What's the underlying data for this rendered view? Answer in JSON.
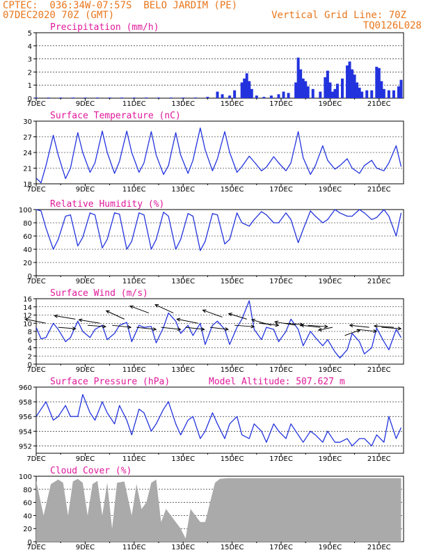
{
  "header": {
    "line1": "CPTEC:  036:34W-07:57S  BELO JARDIM (PE)",
    "line2": "07DEC2020 70Z (GMT)",
    "right1": "Vertical Grid Line: 70Z",
    "right2": "TQ0126L028"
  },
  "colors": {
    "header": "#e8761c",
    "title": "#e0189a",
    "line": "#2233dd",
    "cloud": "#aaaaaa"
  },
  "x_axis": {
    "start_day": 7,
    "end_day": 22,
    "tick_labels": [
      "7DEC",
      "9DEC",
      "11DEC",
      "13DEC",
      "15DEC",
      "17DEC",
      "19DEC",
      "21DEC"
    ],
    "tick_days": [
      7,
      9,
      11,
      13,
      15,
      17,
      19,
      21
    ]
  },
  "chart_data": [
    {
      "type": "bar",
      "title": "Precipitation (mm/h)",
      "ylim": [
        0,
        5
      ],
      "yticks": [
        0,
        1,
        2,
        3,
        4,
        5
      ],
      "x_unit": "day of December 2020",
      "x": [
        7.0,
        7.5,
        8.0,
        8.5,
        9.0,
        9.5,
        10.0,
        10.5,
        11.0,
        11.5,
        12.0,
        12.5,
        13.0,
        13.5,
        14.0,
        14.4,
        14.6,
        14.9,
        15.1,
        15.4,
        15.5,
        15.6,
        15.7,
        15.8,
        16.0,
        16.3,
        16.6,
        16.9,
        17.1,
        17.3,
        17.6,
        17.7,
        17.8,
        17.9,
        18.0,
        18.1,
        18.3,
        18.6,
        18.8,
        18.9,
        19.0,
        19.1,
        19.2,
        19.3,
        19.5,
        19.7,
        19.8,
        19.9,
        20.0,
        20.1,
        20.2,
        20.3,
        20.5,
        20.7,
        20.9,
        21.0,
        21.1,
        21.2,
        21.4,
        21.6,
        21.8,
        21.9
      ],
      "values": [
        0.05,
        0.05,
        0.05,
        0.05,
        0.05,
        0.05,
        0.05,
        0.05,
        0.05,
        0.05,
        0.05,
        0.05,
        0.05,
        0.05,
        0.1,
        0.5,
        0.3,
        0.2,
        0.6,
        1.2,
        1.5,
        1.9,
        1.3,
        0.7,
        0.2,
        0.1,
        0.2,
        0.3,
        0.5,
        0.4,
        1.2,
        3.1,
        2.2,
        1.5,
        1.3,
        0.9,
        0.7,
        0.5,
        1.6,
        2.1,
        1.2,
        0.5,
        0.7,
        1.1,
        1.5,
        2.5,
        2.8,
        2.2,
        1.8,
        1.2,
        0.8,
        0.5,
        0.6,
        0.6,
        2.4,
        2.3,
        1.3,
        0.7,
        0.6,
        0.6,
        0.9,
        1.4
      ]
    },
    {
      "type": "line",
      "title": "Surface Temperature (nC)",
      "ylim": [
        18,
        30
      ],
      "yticks": [
        18,
        21,
        24,
        27,
        30
      ],
      "x_unit": "day of December 2020",
      "x": [
        7.0,
        7.2,
        7.4,
        7.7,
        7.9,
        8.2,
        8.4,
        8.7,
        8.9,
        9.2,
        9.4,
        9.7,
        9.9,
        10.2,
        10.4,
        10.7,
        10.9,
        11.2,
        11.4,
        11.7,
        11.9,
        12.2,
        12.4,
        12.7,
        12.9,
        13.2,
        13.4,
        13.7,
        13.9,
        14.2,
        14.4,
        14.7,
        14.9,
        15.2,
        15.4,
        15.7,
        15.9,
        16.2,
        16.4,
        16.7,
        16.9,
        17.2,
        17.4,
        17.7,
        17.9,
        18.2,
        18.4,
        18.7,
        18.9,
        19.2,
        19.4,
        19.7,
        19.9,
        20.2,
        20.4,
        20.7,
        20.9,
        21.2,
        21.4,
        21.7,
        21.9
      ],
      "series": [
        {
          "values": [
            19.1,
            18.2,
            21.5,
            27.3,
            23.5,
            19.0,
            21.0,
            27.8,
            24.0,
            20.2,
            22.0,
            28.1,
            24.0,
            20.0,
            22.3,
            28.1,
            24.0,
            20.2,
            22.0,
            28.0,
            23.5,
            19.8,
            21.5,
            27.8,
            23.5,
            20.0,
            22.5,
            28.7,
            24.5,
            20.5,
            22.8,
            28.0,
            24.0,
            20.2,
            21.3,
            23.3,
            22.2,
            20.5,
            21.2,
            23.2,
            22.0,
            20.5,
            22.0,
            28.0,
            23.0,
            19.8,
            21.5,
            25.3,
            22.5,
            20.8,
            21.5,
            22.8,
            21.0,
            20.0,
            21.5,
            22.5,
            21.0,
            20.5,
            22.0,
            25.3,
            21.3
          ]
        }
      ]
    },
    {
      "type": "line",
      "title": "Relative Humidity (%)",
      "ylim": [
        0,
        100
      ],
      "yticks": [
        0,
        20,
        40,
        60,
        80,
        100
      ],
      "x_unit": "day of December 2020",
      "x": [
        7.0,
        7.2,
        7.4,
        7.7,
        7.9,
        8.2,
        8.4,
        8.7,
        8.9,
        9.2,
        9.4,
        9.7,
        9.9,
        10.2,
        10.4,
        10.7,
        10.9,
        11.2,
        11.4,
        11.7,
        11.9,
        12.2,
        12.4,
        12.7,
        12.9,
        13.2,
        13.4,
        13.7,
        13.9,
        14.2,
        14.4,
        14.7,
        14.9,
        15.2,
        15.4,
        15.7,
        15.9,
        16.2,
        16.4,
        16.7,
        16.9,
        17.2,
        17.4,
        17.7,
        17.9,
        18.2,
        18.4,
        18.7,
        18.9,
        19.2,
        19.4,
        19.7,
        19.9,
        20.2,
        20.4,
        20.7,
        20.9,
        21.2,
        21.4,
        21.7,
        21.9
      ],
      "series": [
        {
          "values": [
            100,
            98,
            72,
            40,
            55,
            90,
            92,
            45,
            58,
            95,
            92,
            42,
            55,
            95,
            93,
            40,
            52,
            95,
            92,
            40,
            55,
            96,
            90,
            40,
            55,
            94,
            90,
            38,
            52,
            94,
            92,
            48,
            55,
            95,
            80,
            75,
            85,
            97,
            92,
            80,
            80,
            95,
            85,
            50,
            70,
            98,
            90,
            80,
            85,
            100,
            95,
            90,
            90,
            100,
            95,
            85,
            88,
            100,
            90,
            60,
            95
          ]
        }
      ]
    },
    {
      "type": "line",
      "title": "Surface Wind (m/s)",
      "ylim": [
        0,
        16
      ],
      "yticks": [
        0,
        2,
        4,
        6,
        8,
        10,
        12,
        14,
        16
      ],
      "x_unit": "day of December 2020",
      "x": [
        7.0,
        7.2,
        7.4,
        7.7,
        7.9,
        8.2,
        8.4,
        8.7,
        8.9,
        9.2,
        9.4,
        9.7,
        9.9,
        10.2,
        10.4,
        10.7,
        10.9,
        11.2,
        11.4,
        11.7,
        11.9,
        12.2,
        12.4,
        12.7,
        12.9,
        13.2,
        13.4,
        13.7,
        13.9,
        14.2,
        14.4,
        14.7,
        14.9,
        15.2,
        15.4,
        15.7,
        15.9,
        16.2,
        16.4,
        16.7,
        16.9,
        17.2,
        17.4,
        17.7,
        17.9,
        18.2,
        18.4,
        18.7,
        18.9,
        19.2,
        19.4,
        19.7,
        19.9,
        20.2,
        20.4,
        20.7,
        20.9,
        21.2,
        21.4,
        21.7,
        21.9
      ],
      "series": [
        {
          "values": [
            9,
            6.2,
            6.5,
            10,
            8.5,
            5.5,
            6.5,
            10.5,
            8.0,
            6.5,
            8.5,
            9.5,
            6.0,
            7.5,
            9.5,
            10.2,
            5.5,
            9.5,
            9.0,
            9.2,
            5.2,
            9.0,
            12.5,
            10.5,
            7.5,
            9.5,
            7.0,
            10.0,
            4.8,
            9.5,
            10.5,
            8.5,
            4.8,
            9.0,
            11.0,
            15.5,
            8.5,
            6.0,
            9.0,
            8.5,
            5.5,
            8.0,
            11.0,
            8.5,
            4.5,
            8.0,
            6.5,
            4.5,
            6.0,
            3.0,
            1.5,
            3.5,
            7.5,
            5.5,
            2.5,
            4.0,
            8.8,
            5.5,
            3.5,
            8.5,
            6.5
          ]
        }
      ]
    },
    {
      "type": "line",
      "title": "Surface Pressure (hPa)",
      "annotation": "Model Altitude: 507.627 m",
      "ylim": [
        951,
        960
      ],
      "yticks": [
        952,
        954,
        956,
        958,
        960
      ],
      "x_unit": "day of December 2020",
      "x": [
        7.0,
        7.2,
        7.4,
        7.7,
        7.9,
        8.2,
        8.4,
        8.7,
        8.9,
        9.2,
        9.4,
        9.7,
        9.9,
        10.2,
        10.4,
        10.7,
        10.9,
        11.2,
        11.4,
        11.7,
        11.9,
        12.2,
        12.4,
        12.7,
        12.9,
        13.2,
        13.4,
        13.7,
        13.9,
        14.2,
        14.4,
        14.7,
        14.9,
        15.2,
        15.4,
        15.7,
        15.9,
        16.2,
        16.4,
        16.7,
        16.9,
        17.2,
        17.4,
        17.7,
        17.9,
        18.2,
        18.4,
        18.7,
        18.9,
        19.2,
        19.4,
        19.7,
        19.9,
        20.2,
        20.4,
        20.7,
        20.9,
        21.2,
        21.4,
        21.7,
        21.9
      ],
      "series": [
        {
          "values": [
            956,
            957,
            958,
            955.5,
            956,
            957.5,
            956,
            956,
            959,
            956.5,
            955.5,
            958,
            956.5,
            955,
            957.5,
            955.5,
            953.5,
            957,
            956.5,
            954,
            955,
            957,
            958,
            955,
            953.5,
            955.5,
            956,
            953,
            954,
            956.5,
            955,
            953,
            955,
            956,
            953.5,
            953,
            955,
            954,
            952.5,
            955,
            954,
            953,
            955,
            953.5,
            952.5,
            954,
            953.5,
            952.5,
            954,
            952.5,
            952.5,
            953,
            952,
            953,
            953,
            952,
            953.5,
            952.5,
            956,
            953,
            954.5
          ]
        }
      ]
    },
    {
      "type": "area",
      "title": "Cloud Cover (%)",
      "ylim": [
        0,
        100
      ],
      "yticks": [
        0,
        20,
        40,
        60,
        80,
        100
      ],
      "x_unit": "day of December 2020",
      "x": [
        7.0,
        7.3,
        7.6,
        7.9,
        8.1,
        8.3,
        8.5,
        8.7,
        8.9,
        9.1,
        9.3,
        9.5,
        9.7,
        9.9,
        10.1,
        10.3,
        10.6,
        10.9,
        11.1,
        11.3,
        11.5,
        11.7,
        11.9,
        12.1,
        12.3,
        12.6,
        12.9,
        13.1,
        13.3,
        13.5,
        13.7,
        13.9,
        14.1,
        14.3,
        14.5,
        14.8,
        15.0,
        15.5,
        16.0,
        16.5,
        17.0,
        17.5,
        18.0,
        18.5,
        19.0,
        19.5,
        20.0,
        20.5,
        21.0,
        21.5,
        21.9
      ],
      "values": [
        93,
        40,
        88,
        95,
        90,
        40,
        92,
        96,
        90,
        40,
        88,
        93,
        40,
        90,
        20,
        90,
        92,
        40,
        88,
        50,
        60,
        90,
        95,
        30,
        50,
        35,
        20,
        5,
        50,
        40,
        30,
        30,
        60,
        90,
        96,
        97,
        97,
        97,
        97,
        97,
        97,
        97,
        97,
        97,
        97,
        97,
        97,
        97,
        97,
        97,
        97
      ]
    }
  ],
  "wind_arrows": {
    "x": [
      7.4,
      7.9,
      8.6,
      9.1,
      9.6,
      10.1,
      10.6,
      11.1,
      11.6,
      12.1,
      12.6,
      13.1,
      13.6,
      14.1,
      14.6,
      15.1,
      15.6,
      16.1,
      16.6,
      17.1,
      17.6,
      18.1,
      18.6,
      19.1,
      19.6,
      20.1,
      20.6,
      21.1,
      21.6
    ],
    "speed": [
      10,
      9,
      11,
      9.5,
      10,
      9.5,
      11,
      9,
      12.5,
      9,
      12.5,
      9,
      10,
      9,
      11.5,
      9.5,
      11,
      10,
      9.5,
      10,
      9.5,
      9.5,
      9,
      9,
      7,
      8.5,
      9,
      9,
      9
    ],
    "dx": [
      -30,
      25,
      -30,
      26,
      -30,
      27,
      -26,
      28,
      -27,
      28,
      -26,
      27,
      -30,
      26,
      -28,
      28,
      -26,
      28,
      -28,
      28,
      -30,
      28,
      -28,
      -20,
      22,
      28,
      -28,
      28,
      -28
    ],
    "dy": [
      -6,
      2,
      -5,
      2,
      -5,
      3,
      -12,
      3,
      -10,
      3,
      -12,
      3,
      -6,
      3,
      -10,
      2,
      -8,
      3,
      -8,
      2,
      -5,
      2,
      -3,
      4,
      -8,
      3,
      -3,
      2,
      -2
    ]
  },
  "fill_note": "colors are drawn from colors block"
}
